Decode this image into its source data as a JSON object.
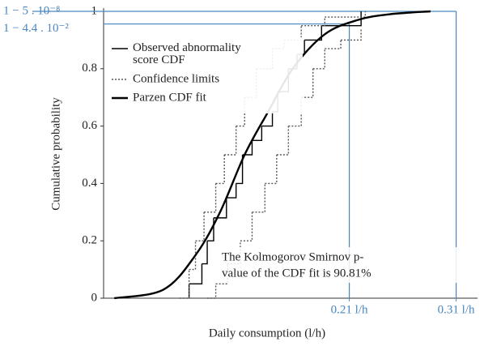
{
  "chart_data": {
    "type": "line",
    "y_label": "Cumulative  probability",
    "x_label": "Daily consumption (l/h)",
    "annotation": [
      "The Kolmogorov Smirnov p-",
      "value of the CDF fit is 90.81%"
    ],
    "xlim": [
      -0.02,
      0.33
    ],
    "ylim": [
      0,
      1
    ],
    "yticks": [
      0,
      0.2,
      0.4,
      0.6,
      0.8,
      1
    ],
    "xticks": [
      {
        "value": 0.21,
        "label": "0.21 l/h"
      },
      {
        "value": 0.31,
        "label": "0.31 l/h"
      }
    ],
    "reference_lines": [
      {
        "value": 0.99999995,
        "label": "1 − 5 . 10⁻⁸",
        "x_end": 0.31
      },
      {
        "value": 0.956,
        "label": "1 − 4.4 . 10⁻²",
        "x_end": 0.21
      }
    ],
    "reference_color": "#4a86c0",
    "series": [
      {
        "name": "Observed abnormality score CDF",
        "color": "#000000",
        "style": "step",
        "x": [
          0.06,
          0.072,
          0.077,
          0.083,
          0.095,
          0.104,
          0.11,
          0.119,
          0.128,
          0.138,
          0.143,
          0.153,
          0.161,
          0.168,
          0.184,
          0.221
        ],
        "values": [
          0.05,
          0.12,
          0.2,
          0.28,
          0.35,
          0.4,
          0.5,
          0.55,
          0.6,
          0.65,
          0.72,
          0.8,
          0.85,
          0.9,
          0.95,
          1
        ]
      },
      {
        "name": "Confidence limits",
        "color": "#555555",
        "style": "dotted-step",
        "x": [
          0.077,
          0.085,
          0.096,
          0.108,
          0.119,
          0.131,
          0.142,
          0.153,
          0.165,
          0.176,
          0.187,
          0.202,
          0.221
        ],
        "values": [
          0,
          0.05,
          0.12,
          0.2,
          0.3,
          0.4,
          0.5,
          0.6,
          0.7,
          0.8,
          0.87,
          0.9,
          0.94
        ],
        "x_upper": [
          0.051,
          0.06,
          0.066,
          0.074,
          0.085,
          0.093,
          0.104,
          0.112,
          0.123,
          0.138,
          0.149,
          0.165,
          0.187,
          0.225
        ],
        "values_upper": [
          0,
          0.1,
          0.2,
          0.3,
          0.4,
          0.5,
          0.6,
          0.7,
          0.8,
          0.87,
          0.9,
          0.95,
          0.98,
          1
        ]
      },
      {
        "name": "Parzen CDF fit",
        "color": "#000000",
        "style": "thick",
        "x": [
          -0.01,
          0.036,
          0.066,
          0.089,
          0.112,
          0.134,
          0.157,
          0.187,
          0.218,
          0.248,
          0.286
        ],
        "values": [
          0,
          0.03,
          0.15,
          0.3,
          0.5,
          0.65,
          0.8,
          0.92,
          0.97,
          0.99,
          1
        ]
      }
    ]
  }
}
